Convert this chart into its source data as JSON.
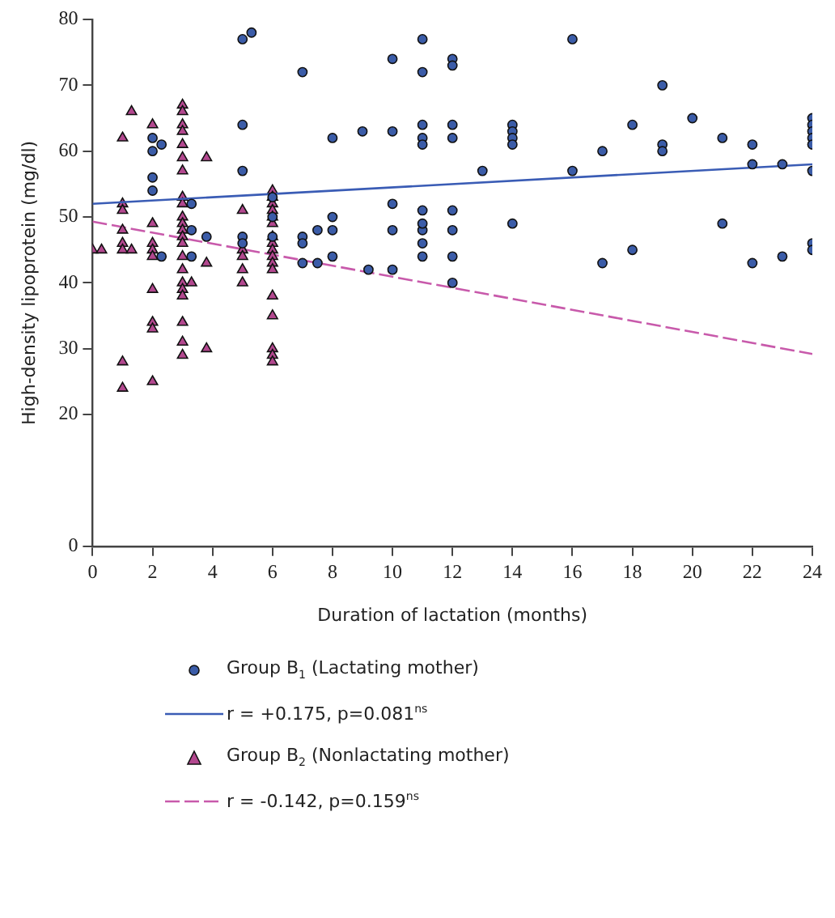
{
  "chart_data": {
    "type": "scatter",
    "xlabel": "Duration of lactation (months)",
    "ylabel": "High-density lipoprotein (mg/dl)",
    "xlim": [
      0,
      24
    ],
    "xticks": [
      0,
      2,
      4,
      6,
      8,
      10,
      12,
      14,
      16,
      18,
      20,
      22,
      24
    ],
    "ylim": [
      0,
      80
    ],
    "yticks": [
      0,
      20,
      30,
      40,
      50,
      60,
      70,
      80
    ],
    "grid": false,
    "legend": "bottom",
    "series": [
      {
        "name": "Group B$_{1}$ (Lactating mother)",
        "type": "scatter",
        "marker": "circle",
        "color": "#3b5ca8",
        "x": [
          2,
          2,
          2,
          2,
          2.3,
          3.3,
          3.3,
          2.3,
          3.3,
          3.8,
          5,
          5.3,
          5,
          5,
          5,
          5,
          6,
          6,
          6,
          7,
          8,
          9,
          10,
          10,
          11,
          11,
          11,
          11,
          11,
          12,
          12,
          12,
          12,
          13,
          14,
          14,
          14,
          14,
          10,
          11,
          12,
          8,
          7.5,
          8,
          10,
          11,
          12,
          11,
          7,
          7,
          8,
          11,
          11,
          12,
          7,
          7.5,
          9.2,
          10,
          12,
          14,
          16,
          19,
          20,
          18,
          21,
          17,
          19,
          19,
          22,
          16,
          22,
          23,
          24,
          24,
          24,
          24,
          24,
          24,
          21,
          18,
          17,
          22,
          23,
          24,
          24
        ],
        "values": [
          62,
          60,
          56,
          54,
          61,
          52,
          48,
          44,
          44,
          47,
          77,
          78,
          64,
          57,
          47,
          46,
          53,
          50,
          47,
          72,
          62,
          63,
          63,
          74,
          77,
          72,
          64,
          62,
          61,
          74,
          73,
          64,
          62,
          57,
          64,
          63,
          62,
          61,
          52,
          51,
          51,
          50,
          48,
          48,
          48,
          48,
          48,
          49,
          47,
          46,
          44,
          46,
          44,
          44,
          43,
          43,
          42,
          42,
          40,
          49,
          77,
          70,
          65,
          64,
          62,
          60,
          61,
          60,
          61,
          57,
          58,
          58,
          65,
          64,
          63,
          62,
          61,
          57,
          49,
          45,
          43,
          43,
          44,
          46,
          45
        ]
      },
      {
        "name": "r = +0.175, p=0.081$^{ns}$",
        "type": "line",
        "marker": "none",
        "line_style": "solid",
        "color": "#3a5cb5",
        "x": [
          0,
          24
        ],
        "values": [
          52,
          58
        ]
      },
      {
        "name": "Group B$_{2}$ (Nonlactating mother)",
        "type": "scatter",
        "marker": "triangle",
        "color": "#b3488f",
        "x": [
          0,
          0.3,
          1,
          1,
          1,
          1,
          1,
          1,
          1,
          1,
          1.3,
          1.3,
          2,
          2,
          2,
          2,
          2,
          2,
          2,
          2,
          2,
          3,
          3,
          3,
          3,
          3,
          3,
          3,
          3,
          3,
          3,
          3,
          3,
          3,
          3,
          3,
          3,
          3,
          3,
          3,
          3,
          3,
          3,
          3.3,
          3.8,
          3.8,
          3.8,
          5,
          5,
          5,
          5,
          5,
          6,
          6,
          6,
          6,
          6,
          6,
          6,
          6,
          6,
          6,
          6,
          6,
          6,
          6,
          6,
          6,
          6
        ],
        "values": [
          45,
          45,
          62,
          52,
          51,
          48,
          46,
          45,
          28,
          24,
          66,
          45,
          64,
          49,
          46,
          45,
          44,
          39,
          34,
          33,
          25,
          67,
          66,
          64,
          63,
          61,
          59,
          57,
          53,
          52,
          50,
          49,
          48,
          47,
          46,
          44,
          42,
          40,
          39,
          38,
          34,
          31,
          29,
          40,
          59,
          43,
          30,
          51,
          45,
          44,
          42,
          40,
          54,
          53,
          52,
          51,
          50,
          49,
          47,
          46,
          45,
          44,
          43,
          42,
          38,
          35,
          30,
          29,
          28
        ]
      },
      {
        "name": "r = -0.142, p=0.159$^{ns}$",
        "type": "line",
        "marker": "none",
        "line_style": "dashed",
        "color": "#c85aab",
        "x": [
          0,
          24
        ],
        "values": [
          49.3,
          29.2
        ]
      }
    ]
  }
}
